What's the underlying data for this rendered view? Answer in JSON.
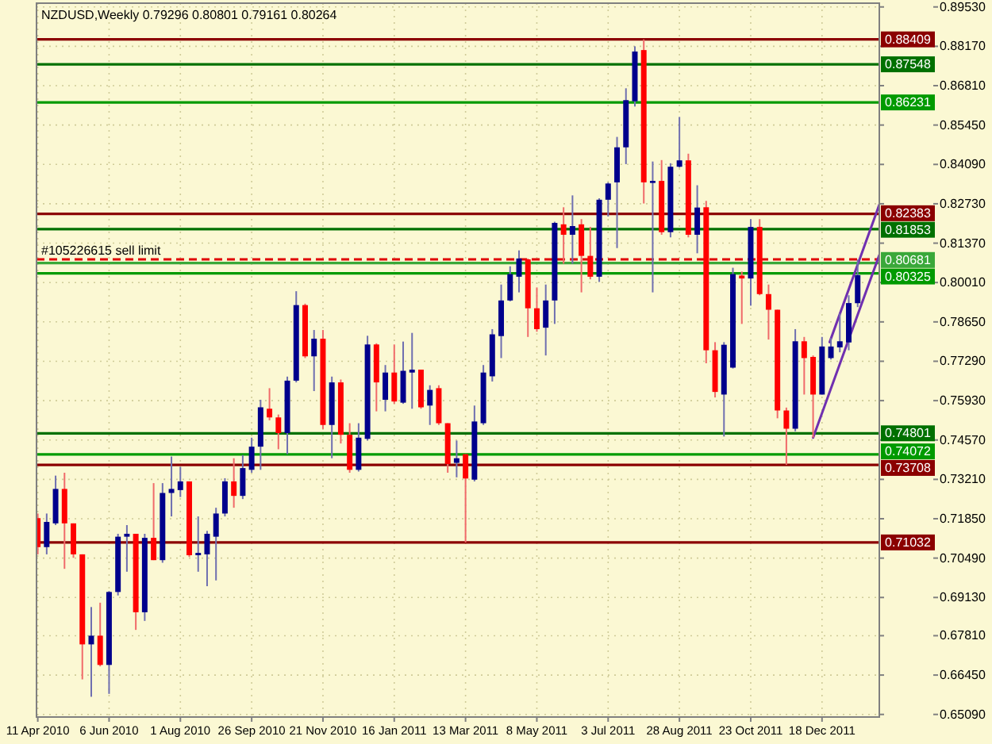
{
  "chart_data": {
    "type": "candlestick",
    "title": "NZDUSD,Weekly 0.79296 0.80801 0.79161 0.80264",
    "x": [
      "2010-04-11",
      "2010-04-18",
      "2010-04-25",
      "2010-05-02",
      "2010-05-09",
      "2010-05-16",
      "2010-05-23",
      "2010-05-30",
      "2010-06-06",
      "2010-06-13",
      "2010-06-20",
      "2010-06-27",
      "2010-07-04",
      "2010-07-11",
      "2010-07-18",
      "2010-07-25",
      "2010-08-01",
      "2010-08-08",
      "2010-08-15",
      "2010-08-22",
      "2010-08-29",
      "2010-09-05",
      "2010-09-12",
      "2010-09-19",
      "2010-09-26",
      "2010-10-03",
      "2010-10-10",
      "2010-10-17",
      "2010-10-24",
      "2010-10-31",
      "2010-11-07",
      "2010-11-14",
      "2010-11-21",
      "2010-11-28",
      "2010-12-05",
      "2010-12-12",
      "2010-12-19",
      "2010-12-26",
      "2011-01-02",
      "2011-01-09",
      "2011-01-16",
      "2011-01-23",
      "2011-01-30",
      "2011-02-06",
      "2011-02-13",
      "2011-02-20",
      "2011-02-27",
      "2011-03-06",
      "2011-03-13",
      "2011-03-20",
      "2011-03-27",
      "2011-04-03",
      "2011-04-10",
      "2011-04-17",
      "2011-04-24",
      "2011-05-01",
      "2011-05-08",
      "2011-05-15",
      "2011-05-22",
      "2011-05-29",
      "2011-06-05",
      "2011-06-12",
      "2011-06-19",
      "2011-06-26",
      "2011-07-03",
      "2011-07-10",
      "2011-07-17",
      "2011-07-24",
      "2011-07-31",
      "2011-08-07",
      "2011-08-14",
      "2011-08-21",
      "2011-08-28",
      "2011-09-04",
      "2011-09-11",
      "2011-09-18",
      "2011-09-25",
      "2011-10-02",
      "2011-10-09",
      "2011-10-16",
      "2011-10-23",
      "2011-10-30",
      "2011-11-06",
      "2011-11-13",
      "2011-11-20",
      "2011-11-27",
      "2011-12-04",
      "2011-12-11",
      "2011-12-18",
      "2011-12-25",
      "2012-01-01",
      "2012-01-08",
      "2012-01-15"
    ],
    "ohlc": [
      [
        0.7187,
        0.7203,
        0.7062,
        0.7087
      ],
      [
        0.7087,
        0.7203,
        0.7062,
        0.7174
      ],
      [
        0.7169,
        0.7334,
        0.7163,
        0.7288
      ],
      [
        0.7288,
        0.7344,
        0.7012,
        0.7169
      ],
      [
        0.7169,
        0.7169,
        0.705,
        0.7062
      ],
      [
        0.7062,
        0.7062,
        0.663,
        0.6751
      ],
      [
        0.6751,
        0.688,
        0.657,
        0.6781
      ],
      [
        0.6781,
        0.6895,
        0.6675,
        0.668
      ],
      [
        0.668,
        0.6935,
        0.658,
        0.6932
      ],
      [
        0.6932,
        0.7133,
        0.692,
        0.7123
      ],
      [
        0.7123,
        0.7163,
        0.7002,
        0.7133
      ],
      [
        0.7133,
        0.7133,
        0.6801,
        0.6862
      ],
      [
        0.6862,
        0.7133,
        0.6832,
        0.7119
      ],
      [
        0.7119,
        0.7308,
        0.7042,
        0.7042
      ],
      [
        0.7042,
        0.7308,
        0.7033,
        0.7274
      ],
      [
        0.7274,
        0.74,
        0.7193,
        0.7288
      ],
      [
        0.7284,
        0.7364,
        0.726,
        0.7314
      ],
      [
        0.7314,
        0.7314,
        0.7053,
        0.7059
      ],
      [
        0.7059,
        0.7193,
        0.7002,
        0.7067
      ],
      [
        0.7062,
        0.7143,
        0.6952,
        0.7133
      ],
      [
        0.7123,
        0.7223,
        0.6972,
        0.7203
      ],
      [
        0.7203,
        0.7325,
        0.7193,
        0.7314
      ],
      [
        0.7314,
        0.7394,
        0.7223,
        0.7264
      ],
      [
        0.7264,
        0.7405,
        0.7253,
        0.736
      ],
      [
        0.7354,
        0.7465,
        0.7344,
        0.7434
      ],
      [
        0.7434,
        0.7596,
        0.7354,
        0.757
      ],
      [
        0.7565,
        0.7636,
        0.7525,
        0.7535
      ],
      [
        0.7535,
        0.7545,
        0.7425,
        0.7481
      ],
      [
        0.7481,
        0.7676,
        0.7408,
        0.7662
      ],
      [
        0.7662,
        0.7971,
        0.7656,
        0.7923
      ],
      [
        0.7923,
        0.7928,
        0.774,
        0.7746
      ],
      [
        0.7746,
        0.7837,
        0.7626,
        0.7807
      ],
      [
        0.7807,
        0.7837,
        0.7495,
        0.7509
      ],
      [
        0.7509,
        0.7676,
        0.7394,
        0.7656
      ],
      [
        0.7656,
        0.7666,
        0.7445,
        0.7475
      ],
      [
        0.7475,
        0.7515,
        0.7344,
        0.7354
      ],
      [
        0.7354,
        0.7515,
        0.7348,
        0.7465
      ],
      [
        0.7461,
        0.7817,
        0.7455,
        0.7787
      ],
      [
        0.7787,
        0.7791,
        0.7556,
        0.7656
      ],
      [
        0.7596,
        0.7716,
        0.7556,
        0.769
      ],
      [
        0.769,
        0.7787,
        0.7582,
        0.759
      ],
      [
        0.7586,
        0.7797,
        0.7582,
        0.7696
      ],
      [
        0.769,
        0.7827,
        0.7565,
        0.77
      ],
      [
        0.77,
        0.77,
        0.7565,
        0.757
      ],
      [
        0.7576,
        0.7646,
        0.7509,
        0.763
      ],
      [
        0.7636,
        0.7646,
        0.7509,
        0.7515
      ],
      [
        0.7515,
        0.7515,
        0.7344,
        0.7374
      ],
      [
        0.7378,
        0.7455,
        0.7328,
        0.7394
      ],
      [
        0.7408,
        0.7408,
        0.7103,
        0.7324
      ],
      [
        0.732,
        0.7576,
        0.7314,
        0.7521
      ],
      [
        0.7515,
        0.7716,
        0.7509,
        0.769
      ],
      [
        0.7677,
        0.784,
        0.7659,
        0.7822
      ],
      [
        0.7816,
        0.7994,
        0.774,
        0.7939
      ],
      [
        0.7939,
        0.8057,
        0.7936,
        0.803
      ],
      [
        0.8021,
        0.8112,
        0.7967,
        0.8084
      ],
      [
        0.8081,
        0.8084,
        0.7813,
        0.7912
      ],
      [
        0.7912,
        0.7984,
        0.7831,
        0.784
      ],
      [
        0.7845,
        0.7994,
        0.7749,
        0.7939
      ],
      [
        0.7939,
        0.8211,
        0.7858,
        0.8207
      ],
      [
        0.8202,
        0.8261,
        0.8066,
        0.8166
      ],
      [
        0.8166,
        0.8302,
        0.8066,
        0.8196
      ],
      [
        0.8202,
        0.822,
        0.7967,
        0.8093
      ],
      [
        0.8093,
        0.8193,
        0.8012,
        0.8021
      ],
      [
        0.8021,
        0.8292,
        0.8003,
        0.8287
      ],
      [
        0.8287,
        0.8347,
        0.8229,
        0.8343
      ],
      [
        0.8347,
        0.8504,
        0.812,
        0.8468
      ],
      [
        0.8468,
        0.8672,
        0.841,
        0.8631
      ],
      [
        0.8627,
        0.8817,
        0.8609,
        0.8799
      ],
      [
        0.8804,
        0.8841,
        0.8274,
        0.8347
      ],
      [
        0.8345,
        0.8419,
        0.7967,
        0.8352
      ],
      [
        0.8352,
        0.8424,
        0.8166,
        0.8175
      ],
      [
        0.8175,
        0.8413,
        0.8157,
        0.8401
      ],
      [
        0.8401,
        0.8573,
        0.8398,
        0.8423
      ],
      [
        0.8423,
        0.8446,
        0.8157,
        0.8166
      ],
      [
        0.8166,
        0.8337,
        0.8102,
        0.826
      ],
      [
        0.8261,
        0.8283,
        0.7722,
        0.7767
      ],
      [
        0.7767,
        0.7795,
        0.7604,
        0.7623
      ],
      [
        0.7614,
        0.7795,
        0.7469,
        0.7786
      ],
      [
        0.7707,
        0.8052,
        0.7704,
        0.803
      ],
      [
        0.8025,
        0.8039,
        0.7858,
        0.8015
      ],
      [
        0.8015,
        0.822,
        0.7921,
        0.8193
      ],
      [
        0.8193,
        0.822,
        0.7957,
        0.7961
      ],
      [
        0.7961,
        0.7994,
        0.7804,
        0.7907
      ],
      [
        0.7907,
        0.7907,
        0.7532,
        0.7559
      ],
      [
        0.7559,
        0.7569,
        0.7371,
        0.7496
      ],
      [
        0.7496,
        0.784,
        0.7487,
        0.7798
      ],
      [
        0.7798,
        0.7813,
        0.7614,
        0.774
      ],
      [
        0.7744,
        0.7749,
        0.7465,
        0.7614
      ],
      [
        0.7614,
        0.7813,
        0.7614,
        0.778
      ],
      [
        0.774,
        0.7809,
        0.7735,
        0.778
      ],
      [
        0.7777,
        0.7894,
        0.776,
        0.7798
      ],
      [
        0.7794,
        0.7957,
        0.7767,
        0.793
      ],
      [
        0.79296,
        0.80801,
        0.79161,
        0.80264
      ]
    ],
    "series": [
      {
        "type": "line",
        "x": [
          "2011-12-11",
          "2012-02-01"
        ],
        "values": [
          0.7465,
          0.8096
        ],
        "color": "#7030b0"
      },
      {
        "type": "line",
        "x": [
          "2011-12-24",
          "2012-02-01"
        ],
        "values": [
          0.7795,
          0.827
        ],
        "color": "#7030b0"
      }
    ],
    "xlim": [
      "2010-04-10",
      "2012-02-01"
    ],
    "xticks": [
      {
        "value": "2010-04-11",
        "label": "11 Apr 2010"
      },
      {
        "value": "2010-06-06",
        "label": "6 Jun 2010"
      },
      {
        "value": "2010-08-01",
        "label": "1 Aug 2010"
      },
      {
        "value": "2010-09-26",
        "label": "26 Sep 2010"
      },
      {
        "value": "2010-11-21",
        "label": "21 Nov 2010"
      },
      {
        "value": "2011-01-16",
        "label": "16 Jan 2011"
      },
      {
        "value": "2011-03-13",
        "label": "13 Mar 2011"
      },
      {
        "value": "2011-05-08",
        "label": "8 May 2011"
      },
      {
        "value": "2011-07-03",
        "label": "3 Jul 2011"
      },
      {
        "value": "2011-08-28",
        "label": "28 Aug 2011"
      },
      {
        "value": "2011-10-23",
        "label": "23 Oct 2011"
      },
      {
        "value": "2011-12-18",
        "label": "18 Dec 2011"
      }
    ],
    "ylim": [
      0.65,
      0.8966
    ],
    "yticks": [
      {
        "value": 0.6509,
        "label": "0.65090"
      },
      {
        "value": 0.6645,
        "label": "0.66450"
      },
      {
        "value": 0.6781,
        "label": "0.67810"
      },
      {
        "value": 0.6913,
        "label": "0.69130"
      },
      {
        "value": 0.7049,
        "label": "0.70490"
      },
      {
        "value": 0.7185,
        "label": "0.71850"
      },
      {
        "value": 0.7321,
        "label": "0.73210"
      },
      {
        "value": 0.7457,
        "label": "0.74570"
      },
      {
        "value": 0.7593,
        "label": "0.75930"
      },
      {
        "value": 0.7729,
        "label": "0.77290"
      },
      {
        "value": 0.7865,
        "label": "0.78650"
      },
      {
        "value": 0.8001,
        "label": "0.80010"
      },
      {
        "value": 0.8137,
        "label": "0.81370"
      },
      {
        "value": 0.8273,
        "label": "0.82730"
      },
      {
        "value": 0.8409,
        "label": "0.84090"
      },
      {
        "value": 0.8545,
        "label": "0.85450"
      },
      {
        "value": 0.8681,
        "label": "0.86810"
      },
      {
        "value": 0.8817,
        "label": "0.88170"
      },
      {
        "value": 0.8953,
        "label": "0.89530"
      }
    ],
    "grid": true,
    "ref_lines": [
      {
        "axis": "y",
        "value": 0.88409,
        "label": "0.88409",
        "color": "#8b0000"
      },
      {
        "axis": "y",
        "value": 0.87548,
        "label": "0.87548",
        "color": "#007000"
      },
      {
        "axis": "y",
        "value": 0.86231,
        "label": "0.86231",
        "color": "#009a00"
      },
      {
        "axis": "y",
        "value": 0.82383,
        "label": "0.82383",
        "color": "#8b0000"
      },
      {
        "axis": "y",
        "value": 0.81853,
        "label": "0.81853",
        "color": "#007000"
      },
      {
        "axis": "y",
        "value": 0.8081,
        "label": "#105226615 sell limit",
        "color": "#e00000",
        "line_style": "dashed"
      },
      {
        "axis": "y",
        "value": 0.80681,
        "label": "0.80681",
        "color": "#3aa83a"
      },
      {
        "axis": "y",
        "value": 0.80325,
        "label": "0.80325",
        "color": "#009a00"
      },
      {
        "axis": "y",
        "value": 0.74801,
        "label": "0.74801",
        "color": "#007000"
      },
      {
        "axis": "y",
        "value": 0.74072,
        "label": "0.74072",
        "color": "#009a00"
      },
      {
        "axis": "y",
        "value": 0.73708,
        "label": "0.73708",
        "color": "#8b0000"
      },
      {
        "axis": "y",
        "value": 0.71032,
        "label": "0.71032",
        "color": "#8b0000"
      }
    ]
  }
}
